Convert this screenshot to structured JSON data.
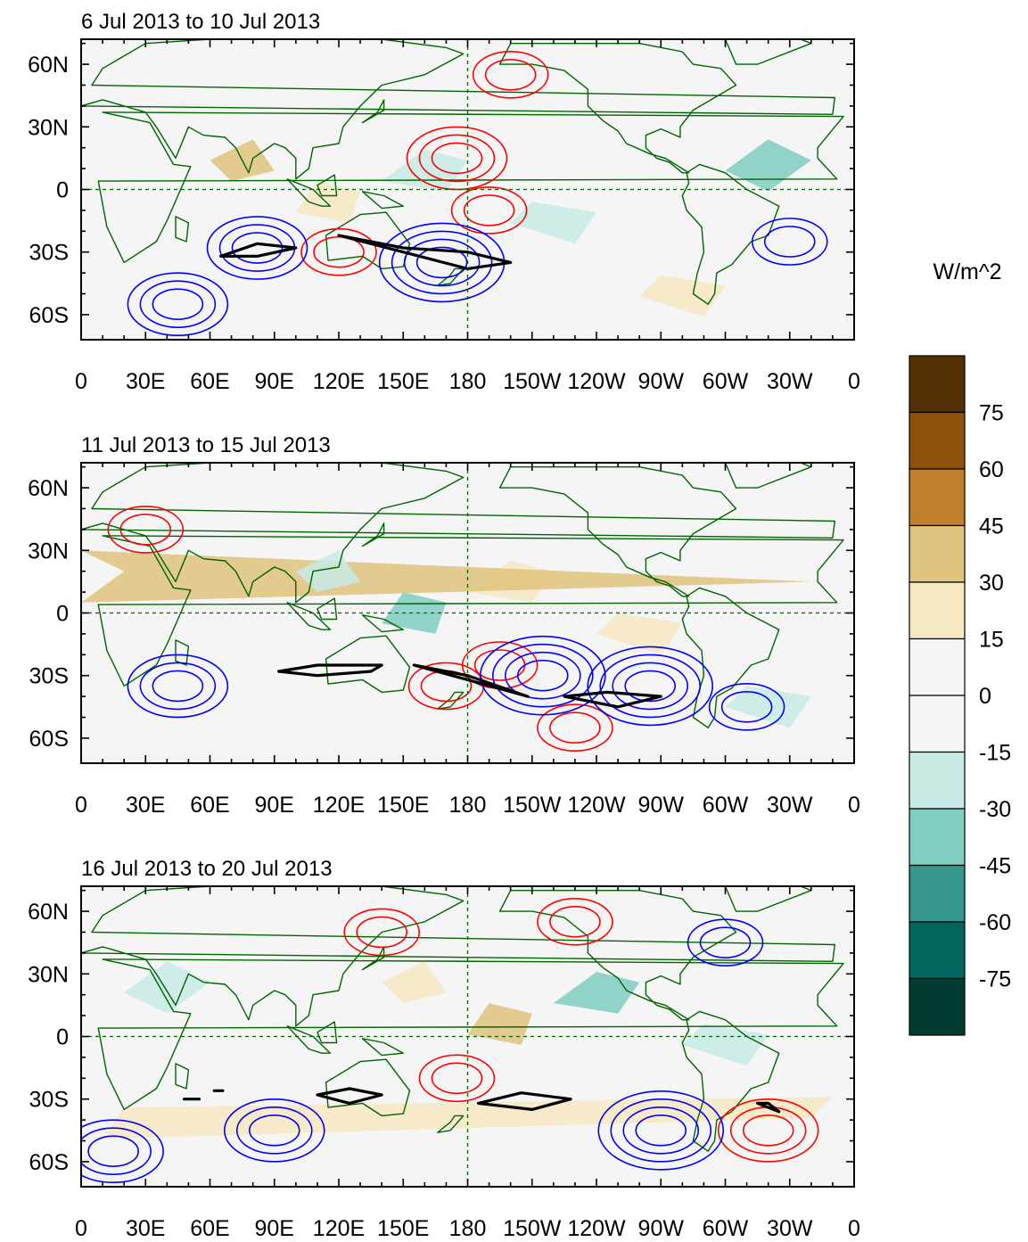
{
  "panels": [
    {
      "title": "6 Jul 2013 to 10 Jul 2013",
      "highs": [
        [
          175,
          15,
          "3"
        ],
        [
          190,
          -10,
          "2"
        ],
        [
          120,
          -30,
          "2"
        ],
        [
          200,
          55,
          "2"
        ]
      ],
      "lows": [
        [
          82,
          -28,
          "3"
        ],
        [
          45,
          -55,
          "3"
        ],
        [
          168,
          -35,
          "4"
        ],
        [
          -30,
          -25,
          "2"
        ]
      ],
      "black": [
        [
          [
            65,
            -32
          ],
          [
            82,
            -32
          ],
          [
            100,
            -28
          ],
          [
            82,
            -26
          ],
          [
            65,
            -32
          ]
        ],
        [
          [
            120,
            -22
          ],
          [
            150,
            -30
          ],
          [
            180,
            -38
          ],
          [
            200,
            -35
          ],
          [
            180,
            -30
          ],
          [
            150,
            -28
          ],
          [
            120,
            -22
          ]
        ]
      ]
    },
    {
      "title": "11 Jul 2013 to 15 Jul 2013",
      "highs": [
        [
          30,
          40,
          "2"
        ],
        [
          -165,
          -25,
          "2"
        ],
        [
          170,
          -35,
          "2"
        ],
        [
          -130,
          -55,
          "2"
        ]
      ],
      "lows": [
        [
          45,
          -35,
          "3"
        ],
        [
          -145,
          -30,
          "4"
        ],
        [
          -95,
          -35,
          "4"
        ],
        [
          -50,
          -45,
          "2"
        ]
      ],
      "black": [
        [
          [
            92,
            -28
          ],
          [
            110,
            -30
          ],
          [
            135,
            -28
          ],
          [
            140,
            -25
          ],
          [
            110,
            -25
          ],
          [
            92,
            -28
          ]
        ],
        [
          [
            155,
            -25
          ],
          [
            180,
            -30
          ],
          [
            208,
            -40
          ],
          [
            180,
            -32
          ],
          [
            155,
            -25
          ]
        ],
        [
          [
            -135,
            -40
          ],
          [
            -110,
            -45
          ],
          [
            -90,
            -40
          ],
          [
            -115,
            -38
          ],
          [
            -135,
            -40
          ]
        ]
      ]
    },
    {
      "title": "16 Jul 2013 to 20 Jul 2013",
      "highs": [
        [
          140,
          50,
          "2"
        ],
        [
          -130,
          55,
          "2"
        ],
        [
          -40,
          -45,
          "3"
        ],
        [
          175,
          -20,
          "2"
        ]
      ],
      "lows": [
        [
          15,
          -55,
          "3"
        ],
        [
          -90,
          -45,
          "4"
        ],
        [
          90,
          -45,
          "3"
        ],
        [
          -60,
          45,
          "2"
        ]
      ],
      "black": [
        [
          [
            110,
            -28
          ],
          [
            125,
            -32
          ],
          [
            140,
            -28
          ],
          [
            125,
            -25
          ],
          [
            110,
            -28
          ]
        ],
        [
          [
            185,
            -32
          ],
          [
            210,
            -35
          ],
          [
            228,
            -30
          ],
          [
            205,
            -27
          ],
          [
            185,
            -32
          ]
        ],
        [
          [
            -45,
            -32
          ],
          [
            -35,
            -36
          ],
          [
            -40,
            -32
          ],
          [
            -45,
            -32
          ]
        ],
        [
          [
            48,
            -30
          ],
          [
            55,
            -30
          ]
        ],
        [
          [
            62,
            -26
          ],
          [
            66,
            -26
          ]
        ]
      ]
    }
  ],
  "x_ticks": [
    "0",
    "30E",
    "60E",
    "90E",
    "120E",
    "150E",
    "180",
    "150W",
    "120W",
    "90W",
    "60W",
    "30W",
    "0"
  ],
  "y_ticks": [
    "60N",
    "30N",
    "0",
    "30S",
    "60S"
  ],
  "colorbar": {
    "unit": "W/m^2",
    "labels": [
      "75",
      "60",
      "45",
      "30",
      "15",
      "0",
      "-15",
      "-30",
      "-45",
      "-60",
      "-75"
    ],
    "colors": [
      "#543005",
      "#8c510a",
      "#bf812d",
      "#dfc27d",
      "#f6e8c3",
      "#f5f5f5",
      "#f5f5f5",
      "#c7eae5",
      "#80cdc1",
      "#35978f",
      "#01665e",
      "#003c30"
    ]
  },
  "colors": {
    "positive_contour": "#ff0000",
    "negative_contour": "#0000ff",
    "coastline": "#006400",
    "reference_line": "#006400",
    "strong_contour": "#000000"
  }
}
